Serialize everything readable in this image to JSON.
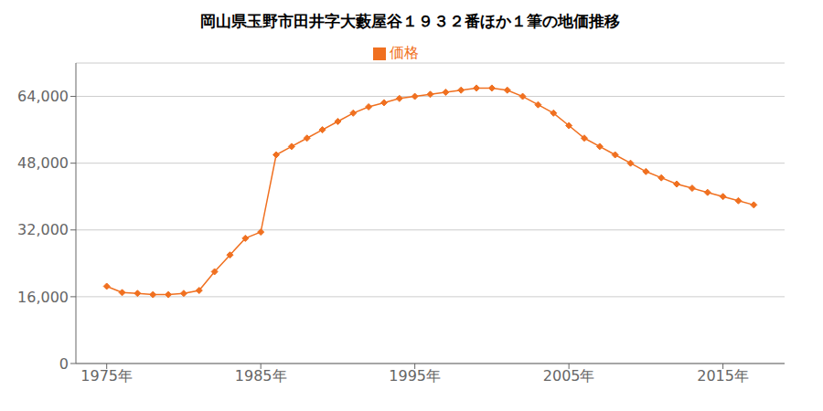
{
  "chart_data": {
    "type": "line",
    "title": "岡山県玉野市田井字大藪屋谷１９３２番ほか１筆の地価推移",
    "x": [
      1975,
      1976,
      1977,
      1978,
      1979,
      1980,
      1981,
      1982,
      1983,
      1984,
      1985,
      1986,
      1987,
      1988,
      1989,
      1990,
      1991,
      1992,
      1993,
      1994,
      1995,
      1996,
      1997,
      1998,
      1999,
      2000,
      2001,
      2002,
      2003,
      2004,
      2005,
      2006,
      2007,
      2008,
      2009,
      2010,
      2011,
      2012,
      2013,
      2014,
      2015,
      2016,
      2017
    ],
    "series": [
      {
        "name": "価格",
        "color": "#f07020",
        "marker": "diamond",
        "values": [
          18500,
          17000,
          16800,
          16500,
          16500,
          16800,
          17500,
          22000,
          26000,
          30000,
          31500,
          50000,
          52000,
          54000,
          56000,
          58000,
          60000,
          61500,
          62500,
          63500,
          64000,
          64500,
          65000,
          65500,
          66000,
          66000,
          65500,
          64000,
          62000,
          60000,
          57000,
          54000,
          52000,
          50000,
          48000,
          46000,
          44500,
          43000,
          42000,
          41000,
          40000,
          39000,
          38000
        ]
      }
    ],
    "xlim": [
      1973,
      2019
    ],
    "xticks": [
      {
        "value": 1975,
        "label": "1975年"
      },
      {
        "value": 1985,
        "label": "1985年"
      },
      {
        "value": 1995,
        "label": "1995年"
      },
      {
        "value": 2005,
        "label": "2005年"
      },
      {
        "value": 2015,
        "label": "2015年"
      }
    ],
    "ylim": [
      0,
      72000
    ],
    "yticks": [
      0,
      {
        "value": 16000,
        "label": "16,000"
      },
      {
        "value": 32000,
        "label": "32,000"
      },
      {
        "value": 48000,
        "label": "48,000"
      },
      {
        "value": 64000,
        "label": "64,000"
      }
    ],
    "grid": true,
    "legend": "top"
  }
}
